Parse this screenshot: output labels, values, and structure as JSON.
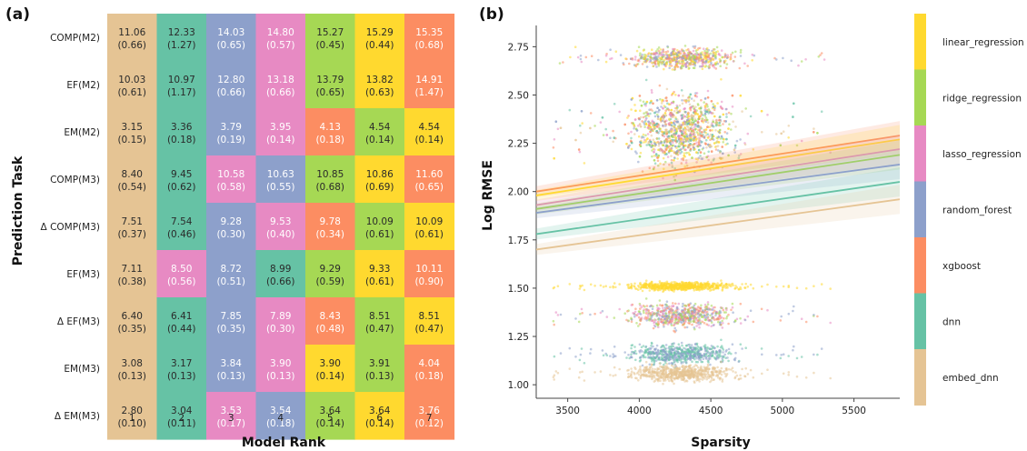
{
  "panels": {
    "a_label": "(a)",
    "b_label": "(b)"
  },
  "colors": {
    "embed_dnn": "#e5c494",
    "dnn": "#66c2a5",
    "random_forest": "#8da0cb",
    "lasso_regression": "#e78ac3",
    "xgboost": "#fc8d62",
    "ridge_regression": "#a6d854",
    "linear_regression": "#ffd92f"
  },
  "chart_data": [
    {
      "type": "heatmap",
      "panel": "(a)",
      "xlabel": "Model Rank",
      "ylabel": "Prediction Task",
      "columns": [
        "1",
        "2",
        "3",
        "4",
        "5",
        "6",
        "7"
      ],
      "rows": [
        {
          "task": "COMP(M2)",
          "models": [
            "embed_dnn",
            "dnn",
            "random_forest",
            "lasso_regression",
            "ridge_regression",
            "linear_regression",
            "xgboost"
          ],
          "values": [
            "11.06",
            "12.33",
            "14.03",
            "14.80",
            "15.27",
            "15.29",
            "15.35"
          ],
          "sd": [
            "(0.66)",
            "(1.27)",
            "(0.65)",
            "(0.57)",
            "(0.45)",
            "(0.44)",
            "(0.68)"
          ]
        },
        {
          "task": "EF(M2)",
          "models": [
            "embed_dnn",
            "dnn",
            "random_forest",
            "lasso_regression",
            "ridge_regression",
            "linear_regression",
            "xgboost"
          ],
          "values": [
            "10.03",
            "10.97",
            "12.80",
            "13.18",
            "13.79",
            "13.82",
            "14.91"
          ],
          "sd": [
            "(0.61)",
            "(1.17)",
            "(0.66)",
            "(0.66)",
            "(0.65)",
            "(0.63)",
            "(1.47)"
          ]
        },
        {
          "task": "EM(M2)",
          "models": [
            "embed_dnn",
            "dnn",
            "random_forest",
            "lasso_regression",
            "xgboost",
            "ridge_regression",
            "linear_regression"
          ],
          "values": [
            "3.15",
            "3.36",
            "3.79",
            "3.95",
            "4.13",
            "4.54",
            "4.54"
          ],
          "sd": [
            "(0.15)",
            "(0.18)",
            "(0.19)",
            "(0.14)",
            "(0.18)",
            "(0.14)",
            "(0.14)"
          ]
        },
        {
          "task": "COMP(M3)",
          "models": [
            "embed_dnn",
            "dnn",
            "lasso_regression",
            "random_forest",
            "ridge_regression",
            "linear_regression",
            "xgboost"
          ],
          "values": [
            "8.40",
            "9.45",
            "10.58",
            "10.63",
            "10.85",
            "10.86",
            "11.60"
          ],
          "sd": [
            "(0.54)",
            "(0.62)",
            "(0.58)",
            "(0.55)",
            "(0.68)",
            "(0.69)",
            "(0.65)"
          ]
        },
        {
          "task": "Δ COMP(M3)",
          "models": [
            "embed_dnn",
            "dnn",
            "random_forest",
            "lasso_regression",
            "xgboost",
            "ridge_regression",
            "linear_regression"
          ],
          "values": [
            "7.51",
            "7.54",
            "9.28",
            "9.53",
            "9.78",
            "10.09",
            "10.09"
          ],
          "sd": [
            "(0.37)",
            "(0.46)",
            "(0.30)",
            "(0.40)",
            "(0.34)",
            "(0.61)",
            "(0.61)"
          ]
        },
        {
          "task": "EF(M3)",
          "models": [
            "embed_dnn",
            "lasso_regression",
            "random_forest",
            "dnn",
            "ridge_regression",
            "linear_regression",
            "xgboost"
          ],
          "values": [
            "7.11",
            "8.50",
            "8.72",
            "8.99",
            "9.29",
            "9.33",
            "10.11"
          ],
          "sd": [
            "(0.38)",
            "(0.56)",
            "(0.51)",
            "(0.66)",
            "(0.59)",
            "(0.61)",
            "(0.90)"
          ]
        },
        {
          "task": "Δ EF(M3)",
          "models": [
            "embed_dnn",
            "dnn",
            "random_forest",
            "lasso_regression",
            "xgboost",
            "ridge_regression",
            "linear_regression"
          ],
          "values": [
            "6.40",
            "6.41",
            "7.85",
            "7.89",
            "8.43",
            "8.51",
            "8.51"
          ],
          "sd": [
            "(0.35)",
            "(0.44)",
            "(0.35)",
            "(0.30)",
            "(0.48)",
            "(0.47)",
            "(0.47)"
          ]
        },
        {
          "task": "EM(M3)",
          "models": [
            "embed_dnn",
            "dnn",
            "random_forest",
            "lasso_regression",
            "linear_regression",
            "ridge_regression",
            "xgboost"
          ],
          "values": [
            "3.08",
            "3.17",
            "3.84",
            "3.90",
            "3.90",
            "3.91",
            "4.04"
          ],
          "sd": [
            "(0.13)",
            "(0.13)",
            "(0.13)",
            "(0.13)",
            "(0.14)",
            "(0.13)",
            "(0.18)"
          ]
        },
        {
          "task": "Δ EM(M3)",
          "models": [
            "embed_dnn",
            "dnn",
            "lasso_regression",
            "random_forest",
            "ridge_regression",
            "linear_regression",
            "xgboost"
          ],
          "values": [
            "2.80",
            "3.04",
            "3.53",
            "3.54",
            "3.64",
            "3.64",
            "3.76"
          ],
          "sd": [
            "(0.10)",
            "(0.11)",
            "(0.17)",
            "(0.18)",
            "(0.14)",
            "(0.14)",
            "(0.12)"
          ]
        }
      ]
    },
    {
      "type": "scatter",
      "panel": "(b)",
      "xlabel": "Sparsity",
      "ylabel": "Log RMSE",
      "xlim": [
        3280,
        5820
      ],
      "ylim": [
        0.93,
        2.86
      ],
      "xticks": [
        "3500",
        "4000",
        "4500",
        "5000",
        "5500"
      ],
      "yticks": [
        "1.00",
        "1.25",
        "1.50",
        "1.75",
        "2.00",
        "2.25",
        "2.50",
        "2.75"
      ],
      "legend_position": "right",
      "legend_entries": [
        "linear_regression",
        "ridge_regression",
        "lasso_regression",
        "random_forest",
        "xgboost",
        "dnn",
        "embed_dnn"
      ],
      "regression_lines": [
        {
          "model": "xgboost",
          "y_start": 2.0,
          "y_end": 2.29
        },
        {
          "model": "linear_regression",
          "y_start": 1.98,
          "y_end": 2.27
        },
        {
          "model": "lasso_regression",
          "y_start": 1.93,
          "y_end": 2.22
        },
        {
          "model": "ridge_regression",
          "y_start": 1.91,
          "y_end": 2.19
        },
        {
          "model": "random_forest",
          "y_start": 1.89,
          "y_end": 2.14
        },
        {
          "model": "dnn",
          "y_start": 1.78,
          "y_end": 2.05
        },
        {
          "model": "embed_dnn",
          "y_start": 1.7,
          "y_end": 1.96
        }
      ],
      "point_clusters": [
        {
          "y_center": 2.69,
          "y_spread": 0.05,
          "models": [
            "linear_regression",
            "ridge_regression",
            "lasso_regression",
            "xgboost",
            "random_forest"
          ]
        },
        {
          "y_center": 2.32,
          "y_spread": 0.18,
          "models": [
            "linear_regression",
            "ridge_regression",
            "lasso_regression",
            "random_forest",
            "xgboost",
            "dnn",
            "embed_dnn"
          ]
        },
        {
          "y_center": 1.51,
          "y_spread": 0.02,
          "models": [
            "linear_regression"
          ]
        },
        {
          "y_center": 1.36,
          "y_spread": 0.06,
          "models": [
            "xgboost",
            "lasso_regression",
            "ridge_regression",
            "random_forest"
          ]
        },
        {
          "y_center": 1.16,
          "y_spread": 0.05,
          "models": [
            "dnn",
            "random_forest"
          ]
        },
        {
          "y_center": 1.06,
          "y_spread": 0.04,
          "models": [
            "embed_dnn"
          ]
        }
      ]
    }
  ]
}
